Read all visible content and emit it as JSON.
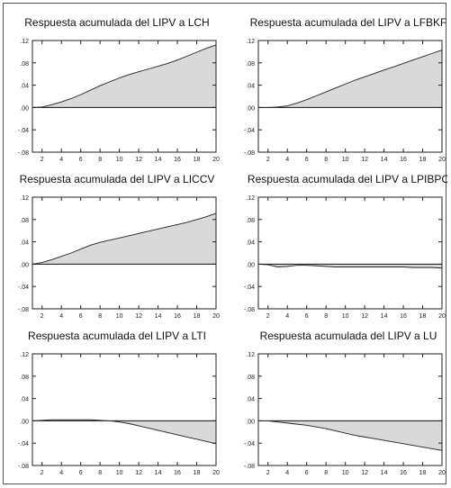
{
  "figure": {
    "panel_count": 6
  },
  "chart_data": [
    {
      "type": "area",
      "title": "Respuesta acumulada del LIPV a LCH",
      "x": [
        1,
        2,
        3,
        4,
        5,
        6,
        7,
        8,
        9,
        10,
        11,
        12,
        13,
        14,
        15,
        16,
        17,
        18,
        19,
        20
      ],
      "series": [
        {
          "values": [
            0.0,
            0.001,
            0.005,
            0.01,
            0.016,
            0.023,
            0.031,
            0.039,
            0.046,
            0.053,
            0.059,
            0.064,
            0.069,
            0.074,
            0.079,
            0.085,
            0.092,
            0.099,
            0.106,
            0.112
          ]
        }
      ],
      "xticks": [
        2,
        4,
        6,
        8,
        10,
        12,
        14,
        16,
        18,
        20
      ],
      "yticks": [
        0.12,
        0.08,
        0.04,
        0.0,
        -0.04,
        -0.08
      ],
      "ytick_labels": [
        ".12",
        ".08",
        ".04",
        ".00",
        "-.04",
        "-.08"
      ],
      "xlim": [
        1,
        20
      ],
      "ylim": [
        -0.08,
        0.12
      ],
      "xlabel": "",
      "ylabel": "",
      "grid": false,
      "fill_color": "#d9d9d9"
    },
    {
      "type": "area",
      "title": "Respuesta acumulada del LIPV a LFBKF",
      "x": [
        1,
        2,
        3,
        4,
        5,
        6,
        7,
        8,
        9,
        10,
        11,
        12,
        13,
        14,
        15,
        16,
        17,
        18,
        19,
        20
      ],
      "series": [
        {
          "values": [
            0.0,
            0.0,
            0.001,
            0.003,
            0.008,
            0.014,
            0.021,
            0.028,
            0.035,
            0.042,
            0.049,
            0.055,
            0.061,
            0.067,
            0.073,
            0.079,
            0.085,
            0.091,
            0.097,
            0.103
          ]
        }
      ],
      "xticks": [
        2,
        4,
        6,
        8,
        10,
        12,
        14,
        16,
        18,
        20
      ],
      "yticks": [
        0.12,
        0.08,
        0.04,
        0.0,
        -0.04,
        -0.08
      ],
      "ytick_labels": [
        ".12",
        ".08",
        ".04",
        ".00",
        "-.04",
        "-.08"
      ],
      "xlim": [
        1,
        20
      ],
      "ylim": [
        -0.08,
        0.12
      ],
      "xlabel": "",
      "ylabel": "",
      "grid": false,
      "fill_color": "#d9d9d9"
    },
    {
      "type": "area",
      "title": "Respuesta acumulada del LIPV a LICCV",
      "x": [
        1,
        2,
        3,
        4,
        5,
        6,
        7,
        8,
        9,
        10,
        11,
        12,
        13,
        14,
        15,
        16,
        17,
        18,
        19,
        20
      ],
      "series": [
        {
          "values": [
            0.0,
            0.003,
            0.008,
            0.014,
            0.02,
            0.027,
            0.034,
            0.039,
            0.043,
            0.047,
            0.051,
            0.055,
            0.059,
            0.063,
            0.067,
            0.071,
            0.075,
            0.08,
            0.085,
            0.091
          ]
        }
      ],
      "xticks": [
        2,
        4,
        6,
        8,
        10,
        12,
        14,
        16,
        18,
        20
      ],
      "yticks": [
        0.12,
        0.08,
        0.04,
        0.0,
        -0.04,
        -0.08
      ],
      "ytick_labels": [
        ".12",
        ".08",
        ".04",
        ".00",
        "-.04",
        "-.08"
      ],
      "xlim": [
        1,
        20
      ],
      "ylim": [
        -0.08,
        0.12
      ],
      "xlabel": "",
      "ylabel": "",
      "grid": false,
      "fill_color": "#d9d9d9"
    },
    {
      "type": "area",
      "title": "Respuesta acumulada del LIPV a LPIBPC",
      "x": [
        1,
        2,
        3,
        4,
        5,
        6,
        7,
        8,
        9,
        10,
        11,
        12,
        13,
        14,
        15,
        16,
        17,
        18,
        19,
        20
      ],
      "series": [
        {
          "values": [
            0.0,
            -0.001,
            -0.005,
            -0.004,
            -0.002,
            -0.002,
            -0.003,
            -0.004,
            -0.005,
            -0.005,
            -0.005,
            -0.005,
            -0.005,
            -0.005,
            -0.005,
            -0.005,
            -0.006,
            -0.006,
            -0.006,
            -0.007
          ]
        }
      ],
      "xticks": [
        2,
        4,
        6,
        8,
        10,
        12,
        14,
        16,
        18,
        20
      ],
      "yticks": [
        0.12,
        0.08,
        0.04,
        0.0,
        -0.04,
        -0.08
      ],
      "ytick_labels": [
        ".12",
        ".08",
        ".04",
        ".00",
        "-.04",
        "-.08"
      ],
      "xlim": [
        1,
        20
      ],
      "ylim": [
        -0.08,
        0.12
      ],
      "xlabel": "",
      "ylabel": "",
      "grid": false,
      "fill_color": "#d9d9d9"
    },
    {
      "type": "area",
      "title": "Respuesta acumulada del LIPV a LTI",
      "x": [
        1,
        2,
        3,
        4,
        5,
        6,
        7,
        8,
        9,
        10,
        11,
        12,
        13,
        14,
        15,
        16,
        17,
        18,
        19,
        20
      ],
      "series": [
        {
          "values": [
            0.0,
            0.001,
            0.002,
            0.002,
            0.002,
            0.002,
            0.002,
            0.001,
            0.0,
            -0.002,
            -0.005,
            -0.009,
            -0.013,
            -0.017,
            -0.021,
            -0.025,
            -0.029,
            -0.033,
            -0.037,
            -0.041
          ]
        }
      ],
      "xticks": [
        2,
        4,
        6,
        8,
        10,
        12,
        14,
        16,
        18,
        20
      ],
      "yticks": [
        0.12,
        0.08,
        0.04,
        0.0,
        -0.04,
        -0.08
      ],
      "ytick_labels": [
        ".12",
        ".08",
        ".04",
        ".00",
        "-.04",
        "-.08"
      ],
      "xlim": [
        1,
        20
      ],
      "ylim": [
        -0.08,
        0.12
      ],
      "xlabel": "",
      "ylabel": "",
      "grid": false,
      "fill_color": "#d9d9d9"
    },
    {
      "type": "area",
      "title": "Respuesta acumulada del LIPV a LU",
      "x": [
        1,
        2,
        3,
        4,
        5,
        6,
        7,
        8,
        9,
        10,
        11,
        12,
        13,
        14,
        15,
        16,
        17,
        18,
        19,
        20
      ],
      "series": [
        {
          "values": [
            0.0,
            0.0,
            -0.002,
            -0.004,
            -0.006,
            -0.008,
            -0.011,
            -0.014,
            -0.018,
            -0.022,
            -0.026,
            -0.029,
            -0.032,
            -0.035,
            -0.038,
            -0.041,
            -0.044,
            -0.047,
            -0.05,
            -0.053
          ]
        }
      ],
      "xticks": [
        2,
        4,
        6,
        8,
        10,
        12,
        14,
        16,
        18,
        20
      ],
      "yticks": [
        0.12,
        0.08,
        0.04,
        0.0,
        -0.04,
        -0.08
      ],
      "ytick_labels": [
        ".12",
        ".08",
        ".04",
        ".00",
        "-.04",
        "-.08"
      ],
      "xlim": [
        1,
        20
      ],
      "ylim": [
        -0.08,
        0.12
      ],
      "xlabel": "",
      "ylabel": "",
      "grid": false,
      "fill_color": "#d9d9d9"
    }
  ]
}
